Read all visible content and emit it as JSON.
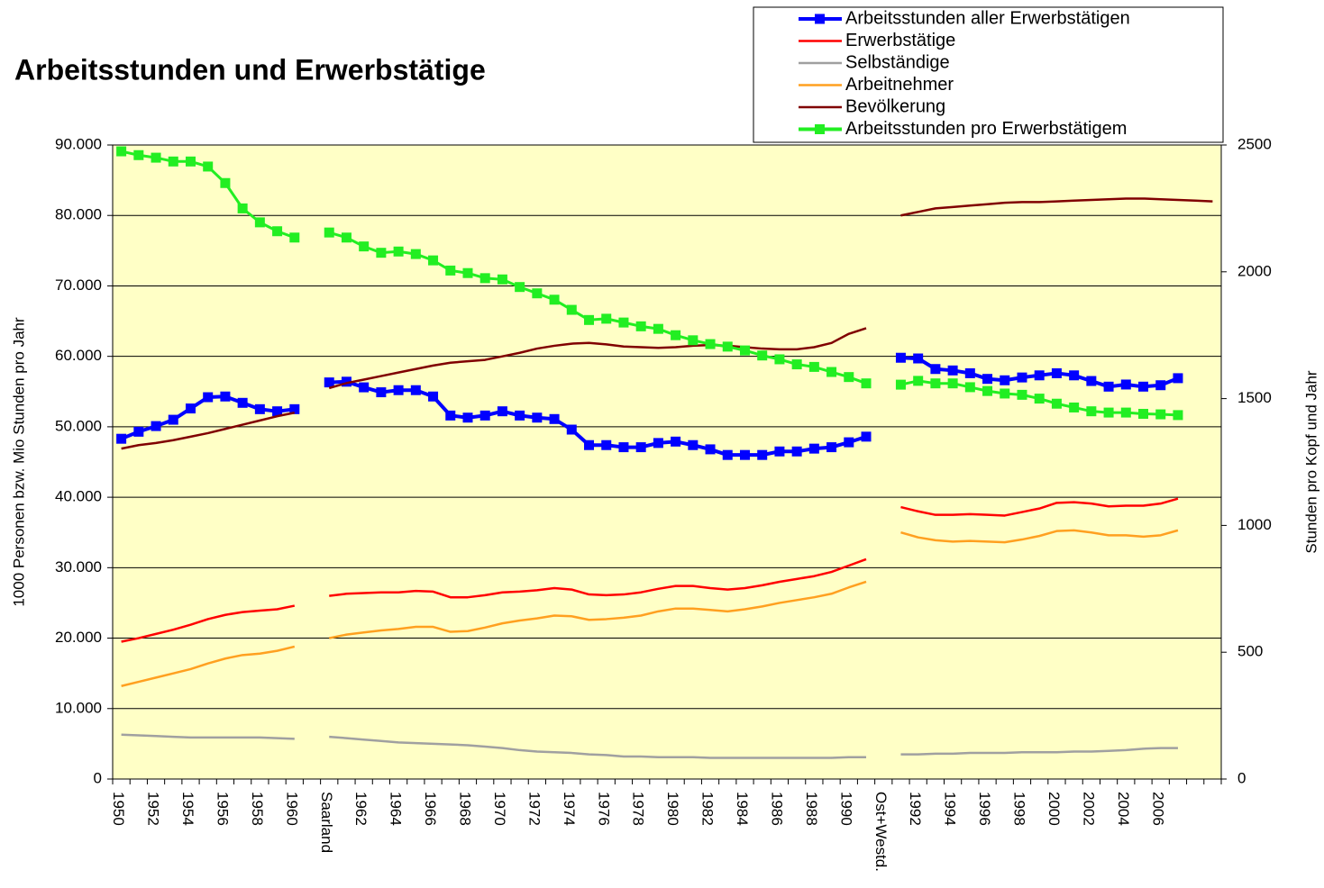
{
  "chart_data": {
    "type": "line",
    "title": "Arbeitsstunden und Erwerbstätige",
    "y_label": "1000 Personen bzw. Mio Stunden pro Jahr",
    "y2_label": "Stunden pro Kopf und Jahr",
    "categories": [
      "1950",
      null,
      "1952",
      null,
      "1954",
      null,
      "1956",
      null,
      "1958",
      null,
      "1960",
      null,
      "Saarland",
      null,
      "1962",
      null,
      "1964",
      null,
      "1966",
      null,
      "1968",
      null,
      "1970",
      null,
      "1972",
      null,
      "1974",
      null,
      "1976",
      null,
      "1978",
      null,
      "1980",
      null,
      "1982",
      null,
      "1984",
      null,
      "1986",
      null,
      "1988",
      null,
      "1990",
      null,
      "Ost+Westd.",
      null,
      "1992",
      null,
      "1994",
      null,
      "1996",
      null,
      "1998",
      null,
      "2000",
      null,
      "2002",
      null,
      "2004",
      null,
      "2006",
      null,
      null,
      null
    ],
    "ylim": [
      0,
      90000
    ],
    "yticks": [
      {
        "value": 0,
        "label": "0"
      },
      {
        "value": 10000,
        "label": "10.000"
      },
      {
        "value": 20000,
        "label": "20.000"
      },
      {
        "value": 30000,
        "label": "30.000"
      },
      {
        "value": 40000,
        "label": "40.000"
      },
      {
        "value": 50000,
        "label": "50.000"
      },
      {
        "value": 60000,
        "label": "60.000"
      },
      {
        "value": 70000,
        "label": "70.000"
      },
      {
        "value": 80000,
        "label": "80.000"
      },
      {
        "value": 90000,
        "label": "90.000"
      }
    ],
    "y2lim": [
      0,
      2500
    ],
    "y2ticks": [
      0,
      500,
      1000,
      1500,
      2000,
      2500
    ],
    "grid": true,
    "legend": "top-right",
    "background": "#ffffc6",
    "series": [
      {
        "name": "Arbeitsstunden aller Erwerbstätigen",
        "color": "#0000ff",
        "marker": "square",
        "values": [
          48300,
          49300,
          50100,
          51000,
          52600,
          54200,
          54300,
          53400,
          52500,
          52200,
          52500,
          null,
          56300,
          56400,
          55600,
          54900,
          55200,
          55200,
          54300,
          51600,
          51300,
          51600,
          52200,
          51600,
          51300,
          51100,
          49600,
          47400,
          47400,
          47100,
          47100,
          47700,
          47900,
          47400,
          46800,
          46000,
          46000,
          46000,
          46500,
          46500,
          46900,
          47100,
          47800,
          48600,
          null,
          59800,
          59700,
          58200,
          58000,
          57600,
          56800,
          56600,
          57000,
          57300,
          57600,
          57300,
          56500,
          55700,
          56000,
          55700,
          55900,
          56900,
          null,
          null
        ]
      },
      {
        "name": "Erwerbstätige",
        "color": "#ff0000",
        "values": [
          19500,
          20000,
          20600,
          21200,
          21900,
          22700,
          23300,
          23700,
          23900,
          24100,
          24600,
          null,
          26000,
          26300,
          26400,
          26500,
          26500,
          26700,
          26600,
          25800,
          25800,
          26100,
          26500,
          26600,
          26800,
          27100,
          26900,
          26200,
          26100,
          26200,
          26500,
          27000,
          27400,
          27400,
          27100,
          26900,
          27100,
          27500,
          28000,
          28400,
          28800,
          29400,
          30300,
          31200,
          null,
          38600,
          38000,
          37500,
          37500,
          37600,
          37500,
          37400,
          37900,
          38400,
          39200,
          39300,
          39100,
          38700,
          38800,
          38800,
          39100,
          39800,
          null,
          null
        ]
      },
      {
        "name": "Selbständige",
        "color": "#a0a0a0",
        "values": [
          6300,
          6200,
          6100,
          6000,
          5900,
          5900,
          5900,
          5900,
          5900,
          5800,
          5700,
          null,
          6000,
          5800,
          5600,
          5400,
          5200,
          5100,
          5000,
          4900,
          4800,
          4600,
          4400,
          4100,
          3900,
          3800,
          3700,
          3500,
          3400,
          3200,
          3200,
          3100,
          3100,
          3100,
          3000,
          3000,
          3000,
          3000,
          3000,
          3000,
          3000,
          3000,
          3100,
          3100,
          null,
          3500,
          3500,
          3600,
          3600,
          3700,
          3700,
          3700,
          3800,
          3800,
          3800,
          3900,
          3900,
          4000,
          4100,
          4300,
          4400,
          4400,
          null,
          null
        ]
      },
      {
        "name": "Arbeitnehmer",
        "color": "#ffa020",
        "values": [
          13200,
          13800,
          14400,
          15000,
          15600,
          16400,
          17100,
          17600,
          17800,
          18200,
          18800,
          null,
          20000,
          20500,
          20800,
          21100,
          21300,
          21600,
          21600,
          20900,
          21000,
          21500,
          22100,
          22500,
          22800,
          23200,
          23100,
          22600,
          22700,
          22900,
          23200,
          23800,
          24200,
          24200,
          24000,
          23800,
          24100,
          24500,
          25000,
          25400,
          25800,
          26300,
          27200,
          28000,
          null,
          35000,
          34300,
          33900,
          33700,
          33800,
          33700,
          33600,
          34000,
          34500,
          35200,
          35300,
          35000,
          34600,
          34600,
          34400,
          34600,
          35300,
          null,
          null
        ]
      },
      {
        "name": "Bevölkerung",
        "color": "#800000",
        "values": [
          46900,
          47400,
          47700,
          48100,
          48600,
          49100,
          49700,
          50300,
          50900,
          51500,
          52000,
          null,
          55500,
          56200,
          56700,
          57200,
          57700,
          58200,
          58700,
          59100,
          59300,
          59500,
          60000,
          60500,
          61100,
          61500,
          61800,
          61900,
          61700,
          61400,
          61300,
          61200,
          61300,
          61500,
          61600,
          61500,
          61300,
          61100,
          61000,
          61000,
          61300,
          61900,
          63200,
          64000,
          null,
          80000,
          80500,
          81000,
          81200,
          81400,
          81600,
          81800,
          81900,
          81900,
          82000,
          82100,
          82200,
          82300,
          82400,
          82400,
          82300,
          82200,
          82100,
          82000
        ]
      },
      {
        "name": "Arbeitsstunden pro Erwerbstätigem",
        "color": "#22ee22",
        "marker": "square",
        "axis": "y2",
        "values": [
          2475,
          2460,
          2450,
          2435,
          2435,
          2415,
          2350,
          2250,
          2195,
          2160,
          2135,
          null,
          2155,
          2135,
          2100,
          2075,
          2080,
          2070,
          2045,
          2005,
          1995,
          1975,
          1970,
          1940,
          1915,
          1890,
          1850,
          1810,
          1815,
          1800,
          1785,
          1775,
          1750,
          1730,
          1715,
          1705,
          1690,
          1670,
          1655,
          1635,
          1625,
          1605,
          1585,
          1560,
          null,
          1555,
          1570,
          1560,
          1560,
          1545,
          1530,
          1520,
          1515,
          1500,
          1480,
          1465,
          1450,
          1445,
          1445,
          1440,
          1438,
          1435,
          null,
          null
        ]
      }
    ]
  }
}
